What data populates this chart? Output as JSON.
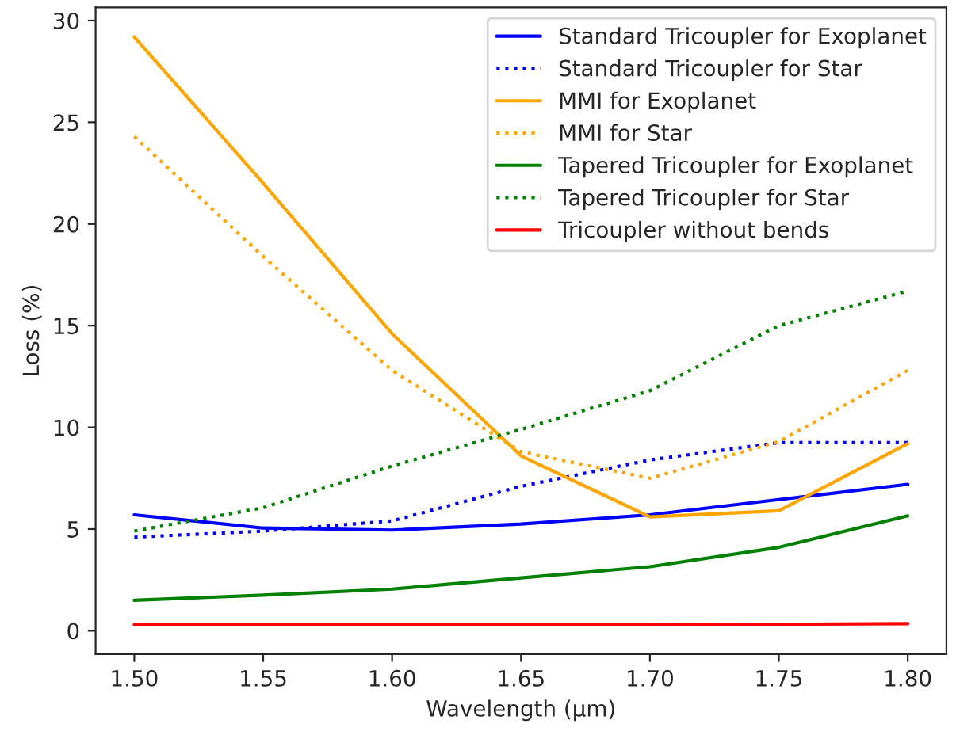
{
  "chart_data": {
    "type": "line",
    "xlabel": "Wavelength (µm)",
    "ylabel": "Loss (%)",
    "x": [
      1.5,
      1.55,
      1.6,
      1.65,
      1.7,
      1.75,
      1.8
    ],
    "xlim": [
      1.485,
      1.815
    ],
    "xticks": [
      {
        "value": 1.5,
        "label": "1.50"
      },
      {
        "value": 1.55,
        "label": "1.55"
      },
      {
        "value": 1.6,
        "label": "1.60"
      },
      {
        "value": 1.65,
        "label": "1.65"
      },
      {
        "value": 1.7,
        "label": "1.70"
      },
      {
        "value": 1.75,
        "label": "1.75"
      },
      {
        "value": 1.8,
        "label": "1.80"
      }
    ],
    "ylim": [
      -1.15,
      30.65
    ],
    "yticks": [
      0,
      5,
      10,
      15,
      20,
      25,
      30
    ],
    "grid": false,
    "legend": "top right",
    "marker": "none",
    "series": [
      {
        "name": "Standard Tricoupler for Exoplanet",
        "color": "#0000ff",
        "line_style": "solid",
        "values": [
          5.7,
          5.05,
          4.95,
          5.25,
          5.7,
          6.45,
          7.2
        ]
      },
      {
        "name": "Standard Tricoupler for Star",
        "color": "#0000ff",
        "line_style": "dotted",
        "values": [
          4.6,
          4.9,
          5.4,
          7.1,
          8.4,
          9.25,
          9.25
        ]
      },
      {
        "name": "MMI for Exoplanet",
        "color": "#ffa500",
        "line_style": "solid",
        "values": [
          29.2,
          22.0,
          14.6,
          8.6,
          5.6,
          5.9,
          9.2
        ]
      },
      {
        "name": "MMI for Star",
        "color": "#ffa500",
        "line_style": "dotted",
        "values": [
          24.3,
          18.4,
          12.8,
          8.8,
          7.5,
          9.3,
          12.8
        ]
      },
      {
        "name": "Tapered Tricoupler for Exoplanet",
        "color": "#008000",
        "line_style": "solid",
        "values": [
          1.5,
          1.75,
          2.05,
          2.6,
          3.15,
          4.1,
          5.65
        ]
      },
      {
        "name": "Tapered Tricoupler for Star",
        "color": "#008000",
        "line_style": "dotted",
        "values": [
          4.9,
          6.05,
          8.1,
          9.9,
          11.8,
          15.0,
          16.7
        ]
      },
      {
        "name": "Tricoupler without bends",
        "color": "#ff0000",
        "line_style": "solid",
        "values": [
          0.3,
          0.3,
          0.3,
          0.3,
          0.3,
          0.32,
          0.35
        ]
      }
    ]
  }
}
